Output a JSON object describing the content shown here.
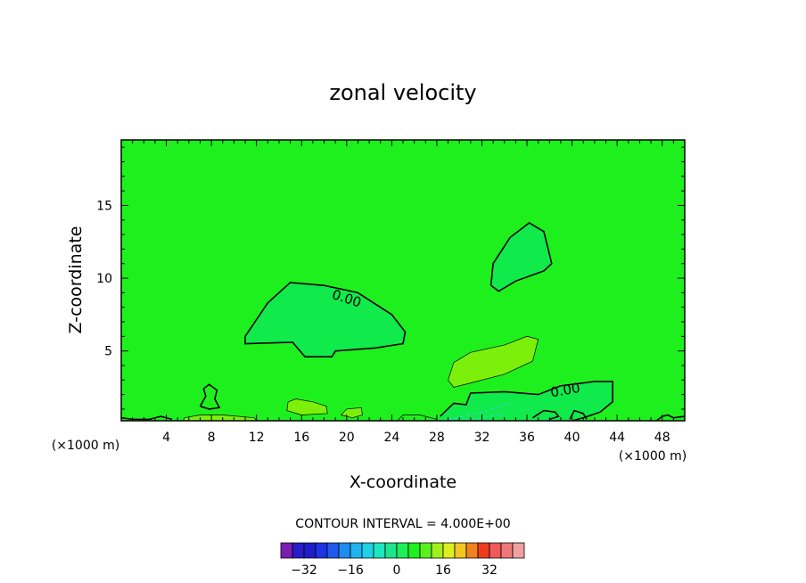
{
  "chart_data": {
    "type": "contour",
    "title": "zonal velocity",
    "xlabel": "X-coordinate",
    "ylabel": "Z-coordinate",
    "x_scale_label": "(×1000 m)",
    "x_scale_label_right": "(×1000 m)",
    "xlim": [
      0,
      50
    ],
    "ylim": [
      0.2,
      19.5
    ],
    "x_ticks": [
      4,
      8,
      12,
      16,
      20,
      24,
      28,
      32,
      36,
      40,
      44,
      48
    ],
    "y_ticks": [
      5,
      10,
      15
    ],
    "contour_interval_text": "CONTOUR INTERVAL = 4.000E+00",
    "contour_labels": [
      {
        "text": "0.00",
        "x": 20.0,
        "y": 8.6
      },
      {
        "text": "0.00",
        "x": 39.4,
        "y": 2.3
      }
    ],
    "background_color": "#1ef01e",
    "regions": [
      {
        "name": "negative-cell-mid",
        "color": "#10ea4a",
        "points": [
          [
            11,
            6
          ],
          [
            13,
            8.3
          ],
          [
            15,
            9.7
          ],
          [
            18,
            9.5
          ],
          [
            21,
            9
          ],
          [
            24,
            7.5
          ],
          [
            25.2,
            6.3
          ],
          [
            25,
            5.5
          ],
          [
            22.5,
            5.2
          ],
          [
            19,
            5
          ],
          [
            18.7,
            4.6
          ],
          [
            16.3,
            4.6
          ],
          [
            15.2,
            5.6
          ],
          [
            11,
            5.5
          ]
        ]
      },
      {
        "name": "negative-cell-upper",
        "color": "#10ea4a",
        "points": [
          [
            32.8,
            9.5
          ],
          [
            33,
            11
          ],
          [
            34.5,
            12.8
          ],
          [
            36.2,
            13.8
          ],
          [
            37.5,
            13.2
          ],
          [
            38.2,
            11
          ],
          [
            37.5,
            10.5
          ],
          [
            35,
            9.8
          ],
          [
            33.5,
            9.1
          ]
        ]
      },
      {
        "name": "positive-cell-mid",
        "color": "#7cf00a",
        "points": [
          [
            29,
            3
          ],
          [
            29.5,
            4.2
          ],
          [
            31,
            4.9
          ],
          [
            34,
            5.4
          ],
          [
            36,
            6
          ],
          [
            37,
            5.8
          ],
          [
            36.5,
            4.3
          ],
          [
            34,
            3.4
          ],
          [
            31,
            2.8
          ],
          [
            29.5,
            2.5
          ]
        ]
      },
      {
        "name": "negative-cell-low",
        "color": "#10ea4a",
        "points": [
          [
            28.3,
            0.5
          ],
          [
            29.5,
            1.4
          ],
          [
            30.6,
            1.3
          ],
          [
            31,
            2.1
          ],
          [
            34,
            2.2
          ],
          [
            37,
            2
          ],
          [
            39,
            2.6
          ],
          [
            42,
            2.9
          ],
          [
            43.6,
            2.9
          ],
          [
            43.6,
            1.5
          ],
          [
            42.5,
            0.8
          ],
          [
            41,
            0.4
          ],
          [
            40,
            0.2
          ],
          [
            28,
            0.2
          ]
        ]
      },
      {
        "name": "positive-cell-low-1",
        "color": "#7cf00a",
        "points": [
          [
            14.8,
            1.5
          ],
          [
            15.5,
            1.7
          ],
          [
            17,
            1.5
          ],
          [
            18.2,
            1.2
          ],
          [
            18.3,
            0.7
          ],
          [
            16,
            0.6
          ],
          [
            14.7,
            0.9
          ]
        ]
      },
      {
        "name": "positive-cell-low-2",
        "color": "#7cf00a",
        "points": [
          [
            19.5,
            0.6
          ],
          [
            20,
            1
          ],
          [
            21.3,
            1.1
          ],
          [
            21.4,
            0.6
          ],
          [
            20.5,
            0.4
          ]
        ]
      },
      {
        "name": "positive-cell-surface",
        "color": "#7cf00a",
        "points": [
          [
            5.5,
            0.2
          ],
          [
            5.6,
            0.4
          ],
          [
            7,
            0.6
          ],
          [
            9,
            0.6
          ],
          [
            11.8,
            0.4
          ],
          [
            12,
            0.2
          ]
        ]
      }
    ],
    "contours": [
      {
        "name": "zero-contour-mid",
        "points": [
          [
            11,
            6
          ],
          [
            13,
            8.3
          ],
          [
            15,
            9.7
          ],
          [
            18,
            9.5
          ],
          [
            21,
            9
          ],
          [
            24,
            7.5
          ],
          [
            25.2,
            6.3
          ],
          [
            25,
            5.5
          ],
          [
            22.5,
            5.2
          ],
          [
            19,
            5
          ],
          [
            18.7,
            4.6
          ],
          [
            16.3,
            4.6
          ],
          [
            15.2,
            5.6
          ],
          [
            11,
            5.5
          ],
          [
            11,
            6
          ]
        ]
      },
      {
        "name": "zero-contour-upper",
        "points": [
          [
            32.8,
            9.5
          ],
          [
            33,
            11
          ],
          [
            34.5,
            12.8
          ],
          [
            36.2,
            13.8
          ],
          [
            37.5,
            13.2
          ],
          [
            38.2,
            11
          ],
          [
            37.5,
            10.5
          ],
          [
            35,
            9.8
          ],
          [
            33.5,
            9.1
          ],
          [
            32.8,
            9.5
          ]
        ]
      },
      {
        "name": "zero-contour-low",
        "points": [
          [
            28.3,
            0.5
          ],
          [
            29.5,
            1.4
          ],
          [
            30.6,
            1.3
          ],
          [
            31,
            2.1
          ],
          [
            34,
            2.2
          ],
          [
            37,
            2
          ],
          [
            39,
            2.6
          ],
          [
            42,
            2.9
          ],
          [
            43.6,
            2.9
          ],
          [
            43.6,
            1.5
          ],
          [
            42.5,
            0.8
          ],
          [
            41,
            0.4
          ],
          [
            40,
            0.2
          ]
        ]
      },
      {
        "name": "zero-contour-low-2",
        "points": [
          [
            36.5,
            0.4
          ],
          [
            37.5,
            0.9
          ],
          [
            38.5,
            0.8
          ],
          [
            38.8,
            0.5
          ],
          [
            38,
            0.3
          ]
        ]
      },
      {
        "name": "zero-contour-low-3",
        "points": [
          [
            39.8,
            0.3
          ],
          [
            40.2,
            0.9
          ],
          [
            41,
            0.7
          ],
          [
            41.3,
            0.3
          ]
        ]
      },
      {
        "name": "zero-contour-left",
        "points": [
          [
            7,
            1.2
          ],
          [
            7.5,
            1.9
          ],
          [
            7.3,
            2.4
          ],
          [
            7.8,
            2.7
          ],
          [
            8.5,
            2.3
          ],
          [
            8.3,
            1.7
          ],
          [
            8.7,
            1.1
          ],
          [
            7.8,
            1.0
          ],
          [
            7,
            1.2
          ]
        ]
      },
      {
        "name": "zero-contour-right-edge",
        "points": [
          [
            47.5,
            0.2
          ],
          [
            48,
            0.5
          ],
          [
            48.5,
            0.6
          ],
          [
            49,
            0.4
          ],
          [
            50,
            0.5
          ]
        ]
      },
      {
        "name": "zero-contour-surface",
        "points": [
          [
            0,
            0.4
          ],
          [
            1,
            0.3
          ],
          [
            2.5,
            0.3
          ],
          [
            3.5,
            0.5
          ],
          [
            4.5,
            0.3
          ]
        ]
      }
    ],
    "thin_contours": [
      {
        "name": "contour-4-mid",
        "points": [
          [
            29,
            3
          ],
          [
            29.5,
            4.2
          ],
          [
            31,
            4.9
          ],
          [
            34,
            5.4
          ],
          [
            36,
            6
          ],
          [
            37,
            5.8
          ],
          [
            36.5,
            4.3
          ],
          [
            34,
            3.4
          ],
          [
            31,
            2.8
          ],
          [
            29.5,
            2.5
          ],
          [
            29,
            3
          ]
        ]
      },
      {
        "name": "contour-4-low",
        "points": [
          [
            14.8,
            1.5
          ],
          [
            15.5,
            1.7
          ],
          [
            17,
            1.5
          ],
          [
            18.2,
            1.2
          ],
          [
            18.3,
            0.7
          ],
          [
            16,
            0.6
          ],
          [
            14.7,
            0.9
          ],
          [
            14.8,
            1.5
          ]
        ]
      },
      {
        "name": "contour-4-low-2",
        "points": [
          [
            19.5,
            0.6
          ],
          [
            20,
            1
          ],
          [
            21.3,
            1.1
          ],
          [
            21.4,
            0.6
          ],
          [
            20.5,
            0.4
          ],
          [
            19.5,
            0.6
          ]
        ]
      },
      {
        "name": "contour-4-surface",
        "points": [
          [
            5.5,
            0.2
          ],
          [
            5.6,
            0.4
          ],
          [
            7,
            0.6
          ],
          [
            9,
            0.6
          ],
          [
            11.8,
            0.4
          ],
          [
            12,
            0.2
          ]
        ]
      },
      {
        "name": "contour-4-surface-2",
        "points": [
          [
            24.5,
            0.2
          ],
          [
            25,
            0.6
          ],
          [
            26.5,
            0.6
          ],
          [
            28,
            0.3
          ]
        ]
      }
    ],
    "dashed_contours": [
      {
        "name": "contour-minus-4",
        "color": "#38d2d2",
        "points": [
          [
            29,
            0.3
          ],
          [
            31,
            0.6
          ],
          [
            33,
            1.0
          ],
          [
            34.5,
            1.4
          ]
        ]
      },
      {
        "name": "contour-minus-4-b",
        "color": "#38d2d2",
        "points": [
          [
            30,
            0.2
          ],
          [
            32,
            0.4
          ],
          [
            34,
            0.7
          ]
        ]
      }
    ],
    "colorbar": {
      "levels": [
        -36,
        -32,
        -28,
        -24,
        -20,
        -16,
        -12,
        -8,
        -4,
        0,
        4,
        8,
        12,
        16,
        20,
        24,
        28,
        32,
        36
      ],
      "colors": [
        "#7a1fb4",
        "#2a1cc8",
        "#1e1ec8",
        "#1e32e6",
        "#1e5af0",
        "#1e8cf0",
        "#1eb4f0",
        "#1ed2e6",
        "#1ee6be",
        "#1ee68c",
        "#1ef05a",
        "#1ef01e",
        "#5af01e",
        "#a0f01e",
        "#dcf01e",
        "#f0c81e",
        "#f0821e",
        "#f03c1e",
        "#f05a5a",
        "#f07878",
        "#f0a0a0"
      ],
      "tick_labels": [
        {
          "value": -32,
          "text": "−32"
        },
        {
          "value": -16,
          "text": "−16"
        },
        {
          "value": 0,
          "text": "0"
        },
        {
          "value": 16,
          "text": "16"
        },
        {
          "value": 32,
          "text": "32"
        }
      ]
    }
  }
}
